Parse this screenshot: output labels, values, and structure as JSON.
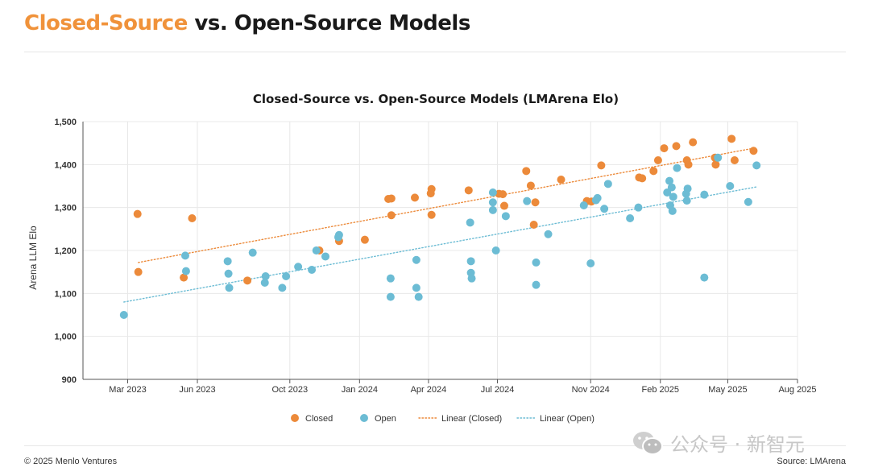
{
  "header": {
    "title_accent": "Closed-Source",
    "title_rest": "vs. Open-Source Models"
  },
  "watermark": {
    "text": "公众号 · 新智元",
    "icon": "wechat-icon"
  },
  "footer": {
    "copyright": "© 2025 Menlo Ventures",
    "source": "Source: LMArena"
  },
  "colors": {
    "closed": "#ec8a3a",
    "open": "#6cbcd4",
    "grid": "#e8e8e8",
    "title_accent": "#f0923a"
  },
  "chart_data": {
    "type": "scatter",
    "title": "Closed-Source vs. Open-Source Models (LMArena Elo)",
    "xlabel": "",
    "ylabel": "Arena LLM Elo",
    "ylim": [
      900,
      1500
    ],
    "yticks": [
      900,
      1000,
      1100,
      1200,
      1300,
      1400,
      1500
    ],
    "ytick_labels": [
      "900",
      "1,000",
      "1,100",
      "1,200",
      "1,300",
      "1,400",
      "1,500"
    ],
    "xlim": [
      "2023-01-01",
      "2025-08-01"
    ],
    "xticks": [
      "2023-03-01",
      "2023-06-01",
      "2023-10-01",
      "2024-01-01",
      "2024-04-01",
      "2024-07-01",
      "2024-11-01",
      "2025-02-01",
      "2025-05-01",
      "2025-08-01"
    ],
    "xtick_labels": [
      "Mar 2023",
      "Jun 2023",
      "Oct 2023",
      "Jan 2024",
      "Apr 2024",
      "Jul 2024",
      "Nov 2024",
      "Feb 2025",
      "May 2025",
      "Aug 2025"
    ],
    "grid": true,
    "legend": "bottom",
    "series": [
      {
        "name": "Closed",
        "points": [
          {
            "x": "2023-03-15",
            "y": 1150
          },
          {
            "x": "2023-03-14",
            "y": 1285
          },
          {
            "x": "2023-05-14",
            "y": 1137
          },
          {
            "x": "2023-05-25",
            "y": 1275
          },
          {
            "x": "2023-08-06",
            "y": 1130
          },
          {
            "x": "2023-11-09",
            "y": 1200
          },
          {
            "x": "2023-12-05",
            "y": 1222
          },
          {
            "x": "2024-01-08",
            "y": 1225
          },
          {
            "x": "2024-02-08",
            "y": 1320
          },
          {
            "x": "2024-02-12",
            "y": 1282
          },
          {
            "x": "2024-02-12",
            "y": 1321
          },
          {
            "x": "2024-03-14",
            "y": 1323
          },
          {
            "x": "2024-04-04",
            "y": 1333
          },
          {
            "x": "2024-04-05",
            "y": 1343
          },
          {
            "x": "2024-04-05",
            "y": 1283
          },
          {
            "x": "2024-05-24",
            "y": 1340
          },
          {
            "x": "2024-07-03",
            "y": 1332
          },
          {
            "x": "2024-07-08",
            "y": 1331
          },
          {
            "x": "2024-07-10",
            "y": 1304
          },
          {
            "x": "2024-08-08",
            "y": 1385
          },
          {
            "x": "2024-08-14",
            "y": 1351
          },
          {
            "x": "2024-08-20",
            "y": 1312
          },
          {
            "x": "2024-08-18",
            "y": 1260
          },
          {
            "x": "2024-09-23",
            "y": 1365
          },
          {
            "x": "2024-10-27",
            "y": 1315
          },
          {
            "x": "2024-11-02",
            "y": 1314
          },
          {
            "x": "2024-11-15",
            "y": 1398
          },
          {
            "x": "2025-01-04",
            "y": 1370
          },
          {
            "x": "2025-01-08",
            "y": 1368
          },
          {
            "x": "2025-01-23",
            "y": 1385
          },
          {
            "x": "2025-01-29",
            "y": 1410
          },
          {
            "x": "2025-02-06",
            "y": 1438
          },
          {
            "x": "2025-02-22",
            "y": 1443
          },
          {
            "x": "2025-03-08",
            "y": 1410
          },
          {
            "x": "2025-03-10",
            "y": 1400
          },
          {
            "x": "2025-03-16",
            "y": 1452
          },
          {
            "x": "2025-04-15",
            "y": 1400
          },
          {
            "x": "2025-04-14",
            "y": 1416
          },
          {
            "x": "2025-05-06",
            "y": 1460
          },
          {
            "x": "2025-05-10",
            "y": 1410
          },
          {
            "x": "2025-06-04",
            "y": 1432
          }
        ]
      },
      {
        "name": "Open",
        "points": [
          {
            "x": "2023-02-24",
            "y": 1050
          },
          {
            "x": "2023-05-16",
            "y": 1188
          },
          {
            "x": "2023-05-17",
            "y": 1152
          },
          {
            "x": "2023-07-11",
            "y": 1175
          },
          {
            "x": "2023-07-12",
            "y": 1146
          },
          {
            "x": "2023-07-13",
            "y": 1113
          },
          {
            "x": "2023-08-13",
            "y": 1195
          },
          {
            "x": "2023-08-29",
            "y": 1125
          },
          {
            "x": "2023-08-30",
            "y": 1140
          },
          {
            "x": "2023-09-21",
            "y": 1113
          },
          {
            "x": "2023-09-26",
            "y": 1140
          },
          {
            "x": "2023-10-12",
            "y": 1162
          },
          {
            "x": "2023-10-30",
            "y": 1155
          },
          {
            "x": "2023-11-05",
            "y": 1200
          },
          {
            "x": "2023-11-17",
            "y": 1186
          },
          {
            "x": "2023-12-04",
            "y": 1231
          },
          {
            "x": "2023-12-05",
            "y": 1236
          },
          {
            "x": "2024-02-11",
            "y": 1135
          },
          {
            "x": "2024-02-11",
            "y": 1092
          },
          {
            "x": "2024-03-16",
            "y": 1178
          },
          {
            "x": "2024-03-16",
            "y": 1113
          },
          {
            "x": "2024-03-19",
            "y": 1092
          },
          {
            "x": "2024-05-26",
            "y": 1265
          },
          {
            "x": "2024-05-27",
            "y": 1175
          },
          {
            "x": "2024-05-27",
            "y": 1148
          },
          {
            "x": "2024-05-28",
            "y": 1135
          },
          {
            "x": "2024-06-25",
            "y": 1335
          },
          {
            "x": "2024-06-25",
            "y": 1312
          },
          {
            "x": "2024-06-25",
            "y": 1294
          },
          {
            "x": "2024-06-29",
            "y": 1200
          },
          {
            "x": "2024-07-12",
            "y": 1280
          },
          {
            "x": "2024-08-09",
            "y": 1315
          },
          {
            "x": "2024-08-21",
            "y": 1172
          },
          {
            "x": "2024-08-21",
            "y": 1120
          },
          {
            "x": "2024-09-06",
            "y": 1238
          },
          {
            "x": "2024-10-23",
            "y": 1305
          },
          {
            "x": "2024-11-01",
            "y": 1170
          },
          {
            "x": "2024-11-08",
            "y": 1317
          },
          {
            "x": "2024-11-10",
            "y": 1322
          },
          {
            "x": "2024-11-19",
            "y": 1297
          },
          {
            "x": "2024-11-24",
            "y": 1355
          },
          {
            "x": "2024-12-23",
            "y": 1275
          },
          {
            "x": "2025-01-03",
            "y": 1300
          },
          {
            "x": "2025-02-10",
            "y": 1335
          },
          {
            "x": "2025-02-13",
            "y": 1362
          },
          {
            "x": "2025-02-14",
            "y": 1305
          },
          {
            "x": "2025-02-16",
            "y": 1347
          },
          {
            "x": "2025-02-17",
            "y": 1292
          },
          {
            "x": "2025-02-18",
            "y": 1325
          },
          {
            "x": "2025-02-23",
            "y": 1392
          },
          {
            "x": "2025-03-07",
            "y": 1332
          },
          {
            "x": "2025-03-08",
            "y": 1316
          },
          {
            "x": "2025-03-09",
            "y": 1344
          },
          {
            "x": "2025-03-31",
            "y": 1330
          },
          {
            "x": "2025-03-31",
            "y": 1137
          },
          {
            "x": "2025-04-18",
            "y": 1416
          },
          {
            "x": "2025-05-04",
            "y": 1350
          },
          {
            "x": "2025-05-28",
            "y": 1313
          },
          {
            "x": "2025-06-08",
            "y": 1398
          }
        ]
      },
      {
        "name": "Linear (Closed)",
        "style": "dotted",
        "color": "#ec8a3a",
        "points": [
          {
            "x": "2023-03-15",
            "y": 1172
          },
          {
            "x": "2025-06-04",
            "y": 1438
          }
        ]
      },
      {
        "name": "Linear (Open)",
        "style": "dotted",
        "color": "#6cbcd4",
        "points": [
          {
            "x": "2023-02-24",
            "y": 1080
          },
          {
            "x": "2025-06-08",
            "y": 1348
          }
        ]
      }
    ]
  }
}
